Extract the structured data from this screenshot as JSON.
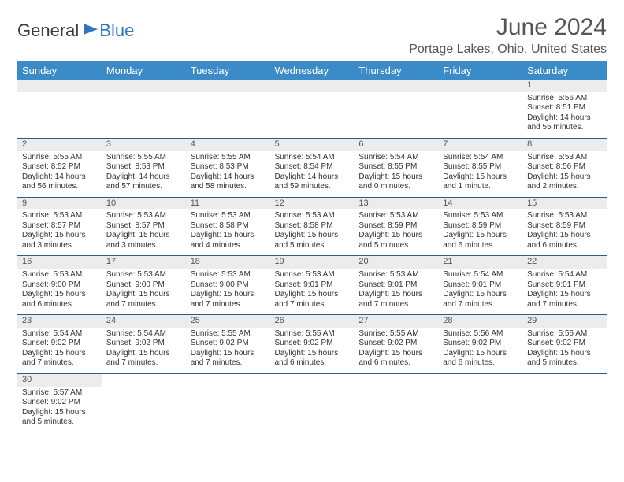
{
  "logo": {
    "part1": "General",
    "part2": "Blue"
  },
  "title": "June 2024",
  "location": "Portage Lakes, Ohio, United States",
  "weekdays": [
    "Sunday",
    "Monday",
    "Tuesday",
    "Wednesday",
    "Thursday",
    "Friday",
    "Saturday"
  ],
  "colors": {
    "headerBg": "#3b8bc8",
    "border": "#2f5a8a",
    "daynumBg": "#ececec"
  },
  "weeks": [
    [
      null,
      null,
      null,
      null,
      null,
      null,
      {
        "n": "1",
        "r": "Sunrise: 5:56 AM",
        "s": "Sunset: 8:51 PM",
        "d": "Daylight: 14 hours and 55 minutes."
      }
    ],
    [
      {
        "n": "2",
        "r": "Sunrise: 5:55 AM",
        "s": "Sunset: 8:52 PM",
        "d": "Daylight: 14 hours and 56 minutes."
      },
      {
        "n": "3",
        "r": "Sunrise: 5:55 AM",
        "s": "Sunset: 8:53 PM",
        "d": "Daylight: 14 hours and 57 minutes."
      },
      {
        "n": "4",
        "r": "Sunrise: 5:55 AM",
        "s": "Sunset: 8:53 PM",
        "d": "Daylight: 14 hours and 58 minutes."
      },
      {
        "n": "5",
        "r": "Sunrise: 5:54 AM",
        "s": "Sunset: 8:54 PM",
        "d": "Daylight: 14 hours and 59 minutes."
      },
      {
        "n": "6",
        "r": "Sunrise: 5:54 AM",
        "s": "Sunset: 8:55 PM",
        "d": "Daylight: 15 hours and 0 minutes."
      },
      {
        "n": "7",
        "r": "Sunrise: 5:54 AM",
        "s": "Sunset: 8:55 PM",
        "d": "Daylight: 15 hours and 1 minute."
      },
      {
        "n": "8",
        "r": "Sunrise: 5:53 AM",
        "s": "Sunset: 8:56 PM",
        "d": "Daylight: 15 hours and 2 minutes."
      }
    ],
    [
      {
        "n": "9",
        "r": "Sunrise: 5:53 AM",
        "s": "Sunset: 8:57 PM",
        "d": "Daylight: 15 hours and 3 minutes."
      },
      {
        "n": "10",
        "r": "Sunrise: 5:53 AM",
        "s": "Sunset: 8:57 PM",
        "d": "Daylight: 15 hours and 3 minutes."
      },
      {
        "n": "11",
        "r": "Sunrise: 5:53 AM",
        "s": "Sunset: 8:58 PM",
        "d": "Daylight: 15 hours and 4 minutes."
      },
      {
        "n": "12",
        "r": "Sunrise: 5:53 AM",
        "s": "Sunset: 8:58 PM",
        "d": "Daylight: 15 hours and 5 minutes."
      },
      {
        "n": "13",
        "r": "Sunrise: 5:53 AM",
        "s": "Sunset: 8:59 PM",
        "d": "Daylight: 15 hours and 5 minutes."
      },
      {
        "n": "14",
        "r": "Sunrise: 5:53 AM",
        "s": "Sunset: 8:59 PM",
        "d": "Daylight: 15 hours and 6 minutes."
      },
      {
        "n": "15",
        "r": "Sunrise: 5:53 AM",
        "s": "Sunset: 8:59 PM",
        "d": "Daylight: 15 hours and 6 minutes."
      }
    ],
    [
      {
        "n": "16",
        "r": "Sunrise: 5:53 AM",
        "s": "Sunset: 9:00 PM",
        "d": "Daylight: 15 hours and 6 minutes."
      },
      {
        "n": "17",
        "r": "Sunrise: 5:53 AM",
        "s": "Sunset: 9:00 PM",
        "d": "Daylight: 15 hours and 7 minutes."
      },
      {
        "n": "18",
        "r": "Sunrise: 5:53 AM",
        "s": "Sunset: 9:00 PM",
        "d": "Daylight: 15 hours and 7 minutes."
      },
      {
        "n": "19",
        "r": "Sunrise: 5:53 AM",
        "s": "Sunset: 9:01 PM",
        "d": "Daylight: 15 hours and 7 minutes."
      },
      {
        "n": "20",
        "r": "Sunrise: 5:53 AM",
        "s": "Sunset: 9:01 PM",
        "d": "Daylight: 15 hours and 7 minutes."
      },
      {
        "n": "21",
        "r": "Sunrise: 5:54 AM",
        "s": "Sunset: 9:01 PM",
        "d": "Daylight: 15 hours and 7 minutes."
      },
      {
        "n": "22",
        "r": "Sunrise: 5:54 AM",
        "s": "Sunset: 9:01 PM",
        "d": "Daylight: 15 hours and 7 minutes."
      }
    ],
    [
      {
        "n": "23",
        "r": "Sunrise: 5:54 AM",
        "s": "Sunset: 9:02 PM",
        "d": "Daylight: 15 hours and 7 minutes."
      },
      {
        "n": "24",
        "r": "Sunrise: 5:54 AM",
        "s": "Sunset: 9:02 PM",
        "d": "Daylight: 15 hours and 7 minutes."
      },
      {
        "n": "25",
        "r": "Sunrise: 5:55 AM",
        "s": "Sunset: 9:02 PM",
        "d": "Daylight: 15 hours and 7 minutes."
      },
      {
        "n": "26",
        "r": "Sunrise: 5:55 AM",
        "s": "Sunset: 9:02 PM",
        "d": "Daylight: 15 hours and 6 minutes."
      },
      {
        "n": "27",
        "r": "Sunrise: 5:55 AM",
        "s": "Sunset: 9:02 PM",
        "d": "Daylight: 15 hours and 6 minutes."
      },
      {
        "n": "28",
        "r": "Sunrise: 5:56 AM",
        "s": "Sunset: 9:02 PM",
        "d": "Daylight: 15 hours and 6 minutes."
      },
      {
        "n": "29",
        "r": "Sunrise: 5:56 AM",
        "s": "Sunset: 9:02 PM",
        "d": "Daylight: 15 hours and 5 minutes."
      }
    ],
    [
      {
        "n": "30",
        "r": "Sunrise: 5:57 AM",
        "s": "Sunset: 9:02 PM",
        "d": "Daylight: 15 hours and 5 minutes."
      },
      null,
      null,
      null,
      null,
      null,
      null
    ]
  ]
}
